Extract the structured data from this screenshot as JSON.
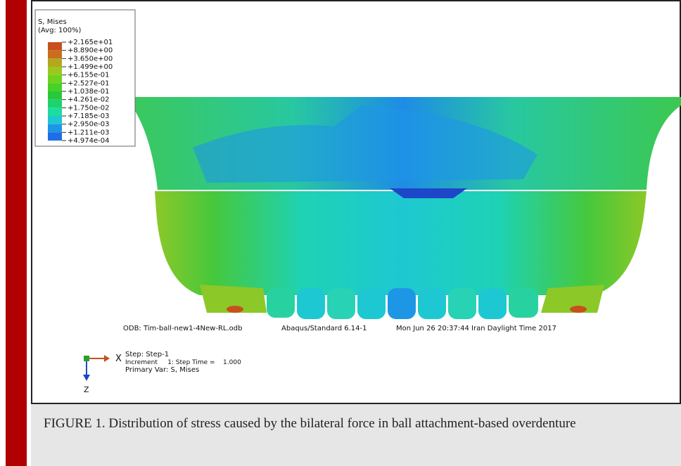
{
  "legend": {
    "title": "S, Mises",
    "subtitle": "(Avg: 100%)",
    "labels": [
      "+2.165e+01",
      "+8.890e+00",
      "+3.650e+00",
      "+1.499e+00",
      "+6.155e-01",
      "+2.527e-01",
      "+1.038e-01",
      "+4.261e-02",
      "+1.750e-02",
      "+7.185e-03",
      "+2.950e-03",
      "+1.211e-03",
      "+4.974e-04"
    ],
    "colors": [
      "#c8501e",
      "#c86e1e",
      "#b4a81e",
      "#9cc81e",
      "#6ed21e",
      "#46d228",
      "#28c83c",
      "#1ed26e",
      "#1edca0",
      "#1ec8d2",
      "#1e96e6",
      "#1e6ee6"
    ]
  },
  "footer": {
    "odb": [
      "ODB: Tim-ball-new1-4New-RL.odb",
      "Abaqus/Standard 6.14-1",
      "Mon Jun 26 20:37:44 Iran Daylight Time 2017"
    ],
    "step": "Step: Step-1",
    "increment": "Increment     1: Step Time =    1.000",
    "primary_var": "Primary Var: S, Mises"
  },
  "axes": {
    "x": "X",
    "z": "Z"
  },
  "caption": "FIGURE 1. Distribution of stress caused by the bilateral force in ball attachment-based overdenture"
}
